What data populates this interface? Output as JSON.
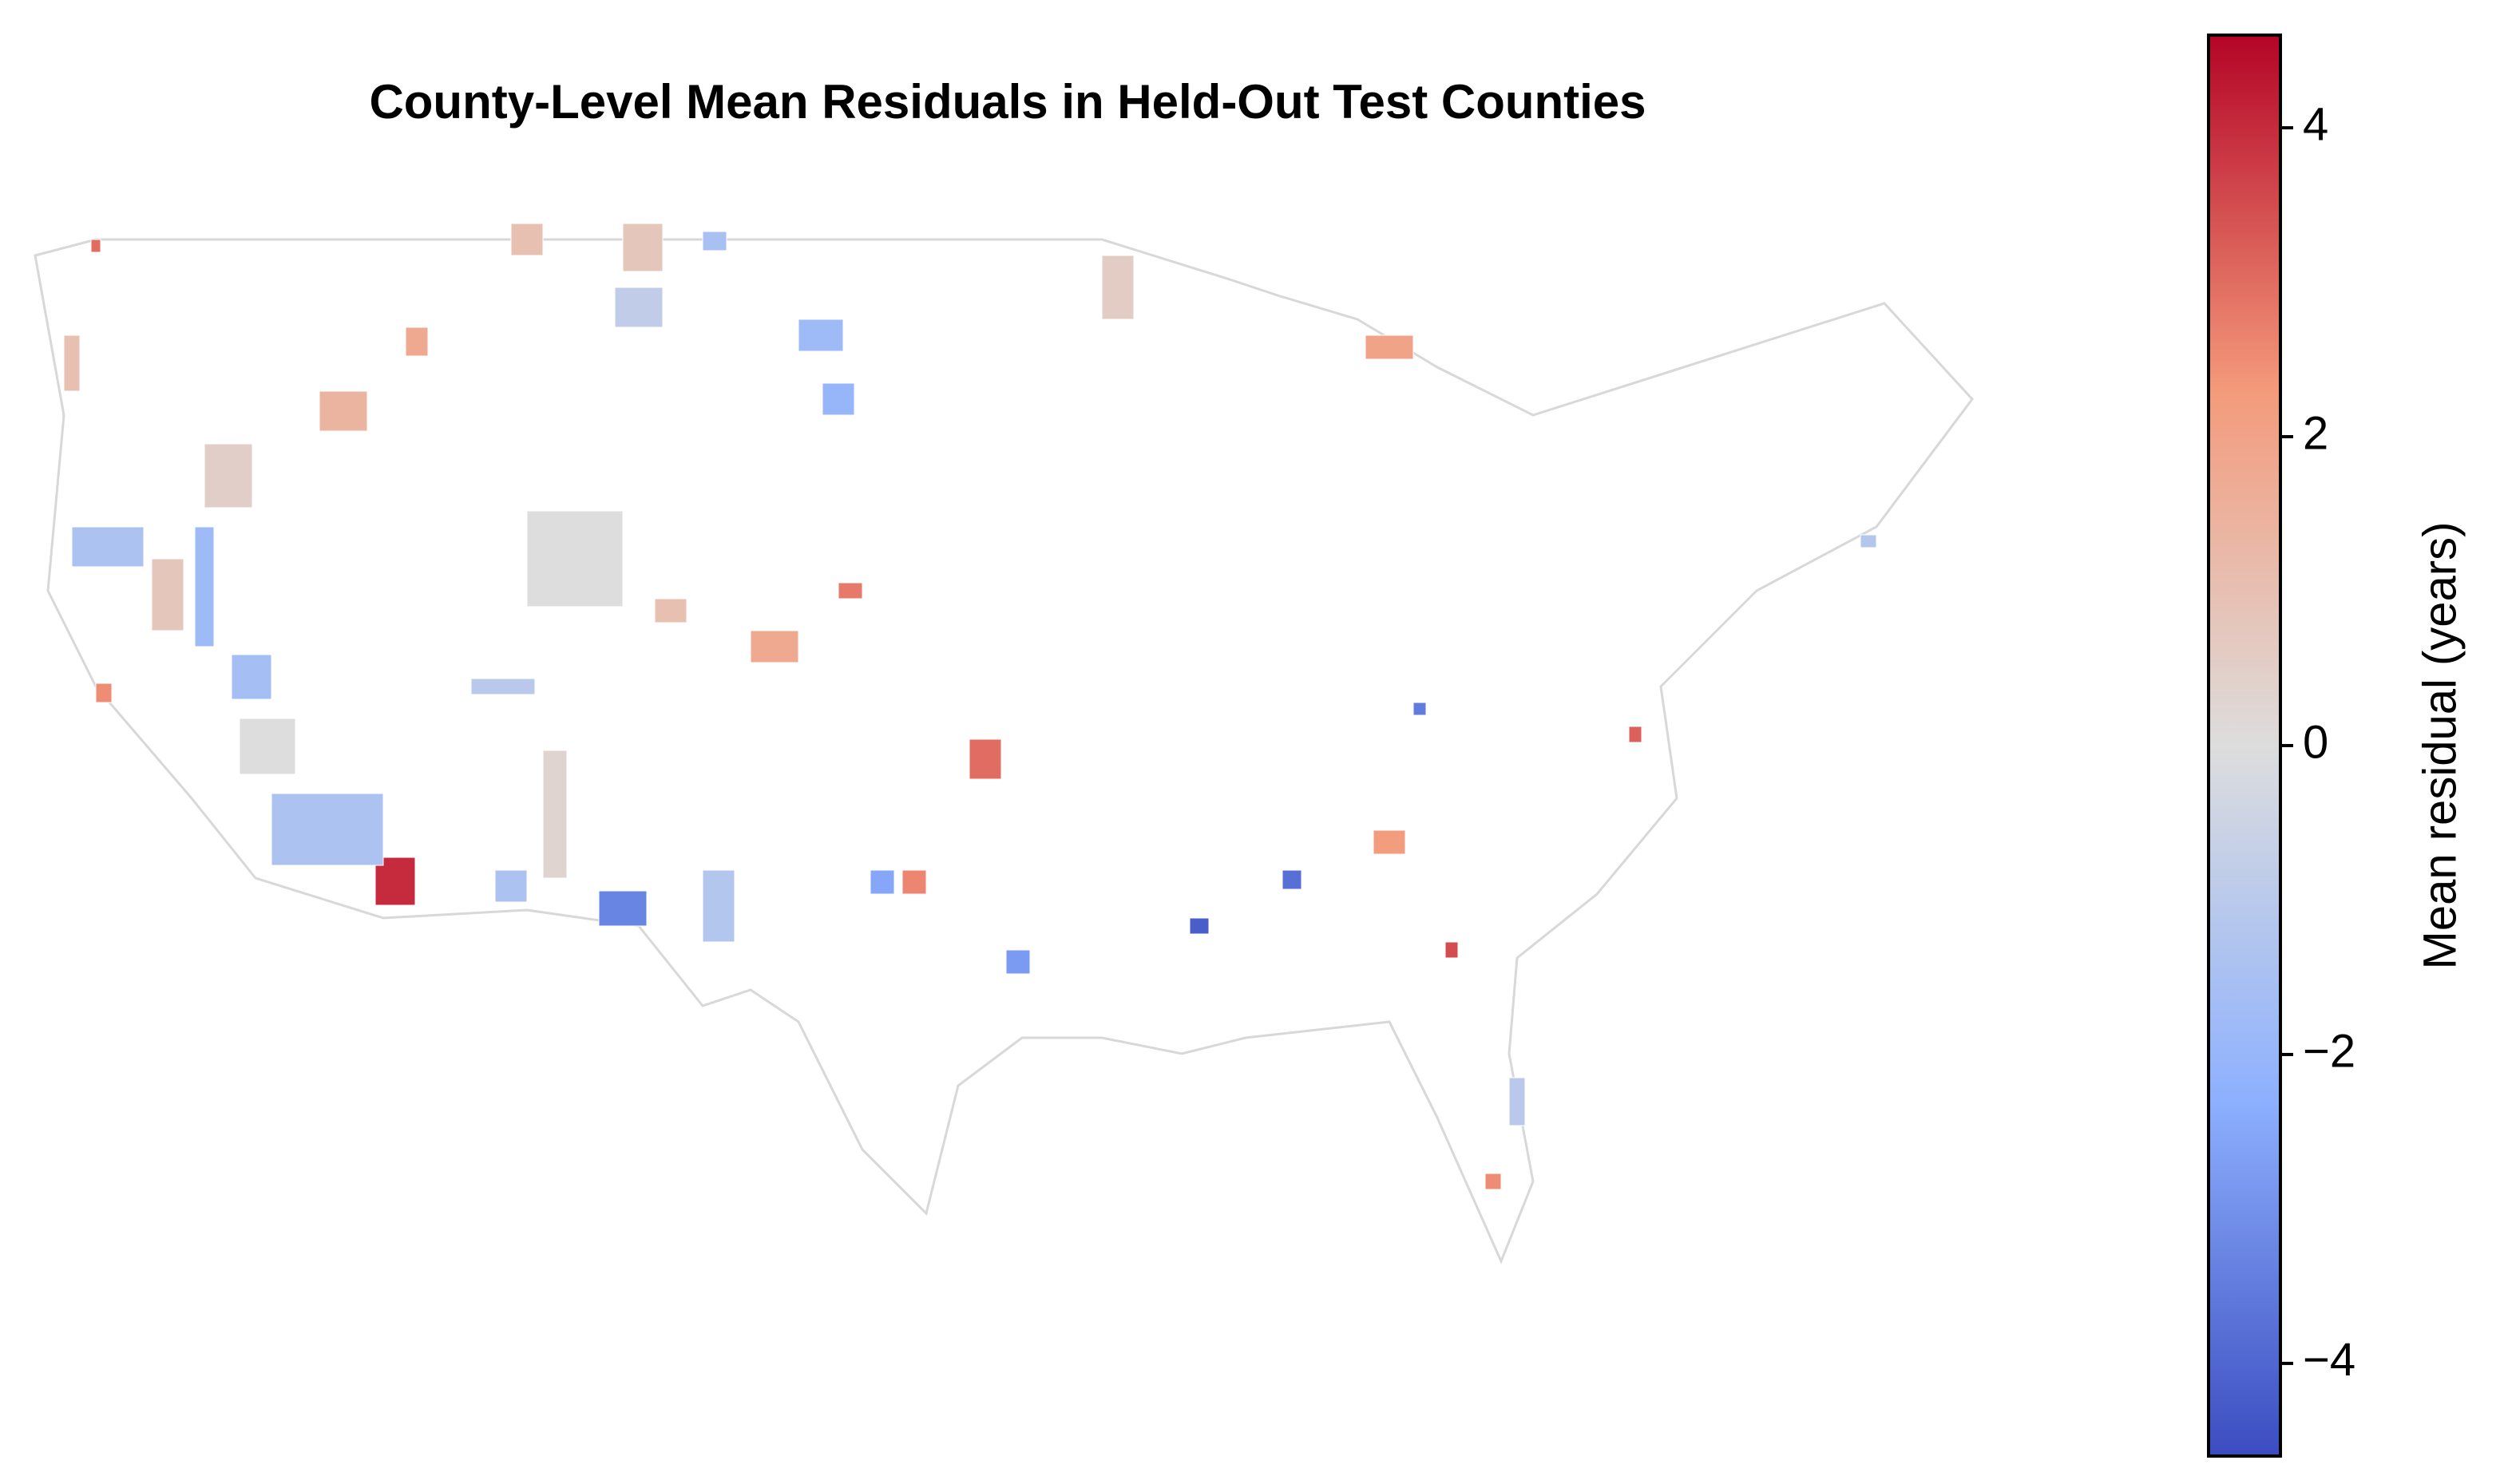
{
  "chart_data": {
    "type": "choropleth",
    "title": "County-Level Mean Residuals in Held-Out Test Counties",
    "colorbar_label": "Mean residual (years)",
    "vlim": [
      -4.6,
      4.6
    ],
    "ticks": [
      {
        "value": -4,
        "label": "−4"
      },
      {
        "value": -2,
        "label": "−2"
      },
      0,
      2,
      4
    ],
    "colormap": [
      "#3b4cc0",
      "#8db0fe",
      "#dddddd",
      "#f49a7b",
      "#b40426"
    ],
    "values": [
      4.0,
      -3.3,
      -4.2,
      -3.8,
      3.0,
      -1.4,
      -1.6,
      -1.8,
      -1.4,
      0.0,
      0.5,
      1.4,
      1.8,
      1.0,
      -0.8,
      -1.5,
      -2.0,
      -1.8,
      1.8,
      2.8,
      2.5,
      -1.2,
      0.0,
      0.8,
      1.0,
      0.8,
      0.6,
      2.0,
      3.2,
      3.5,
      2.5,
      -1.0,
      2.2,
      2.6,
      -2.5,
      -2.8,
      -1.2,
      3.0,
      -3.5,
      1.0,
      -1.0,
      -1.4,
      0.3
    ]
  }
}
